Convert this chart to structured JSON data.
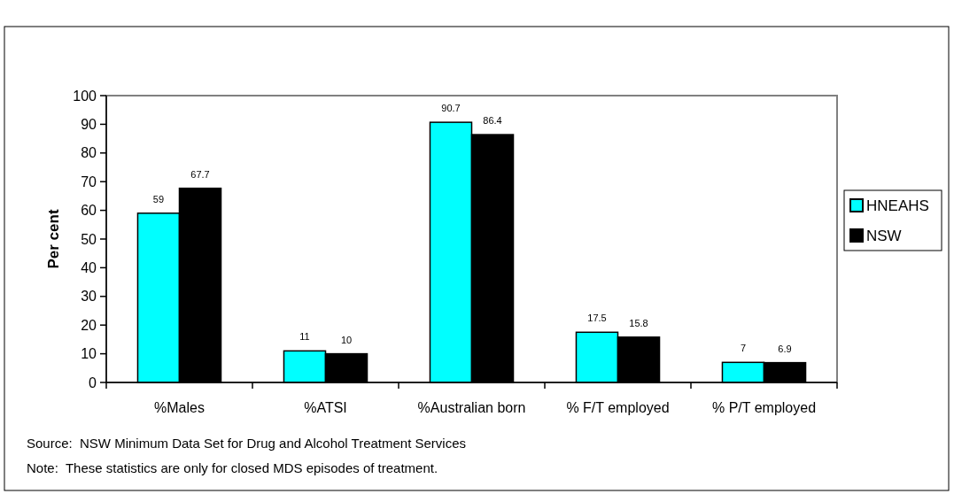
{
  "chart_data": {
    "type": "bar",
    "ylabel": "Per cent",
    "categories": [
      "%Males",
      "%ATSI",
      "%Australian born",
      "% F/T employed",
      "% P/T employed"
    ],
    "series": [
      {
        "name": "HNEAHS",
        "color": "#00ffff",
        "values": [
          59,
          11,
          90.7,
          17.5,
          7
        ]
      },
      {
        "name": "NSW",
        "color": "#000000",
        "values": [
          67.7,
          10,
          86.4,
          15.8,
          6.9
        ]
      }
    ],
    "ylim": [
      0,
      100
    ],
    "yticks": [
      0,
      10,
      20,
      30,
      40,
      50,
      60,
      70,
      80,
      90,
      100
    ],
    "data_labels": true,
    "legend": "right",
    "annotations": [
      "Source:  NSW Minimum Data Set for Drug and Alcohol Treatment Services",
      "Note:  These statistics are only for closed MDS episodes of treatment."
    ]
  }
}
